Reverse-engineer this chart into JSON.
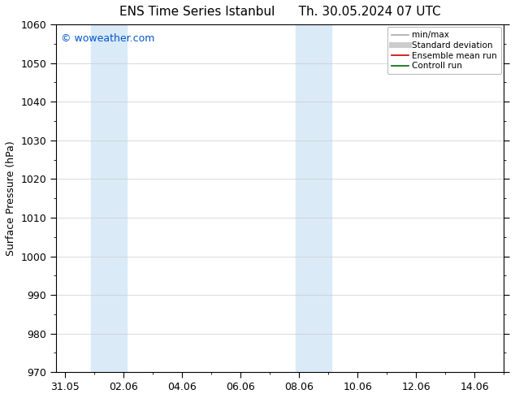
{
  "title_left": "ENS Time Series Istanbul",
  "title_right": "Th. 30.05.2024 07 UTC",
  "ylabel": "Surface Pressure (hPa)",
  "watermark": "© woweather.com",
  "ylim": [
    970,
    1060
  ],
  "yticks": [
    970,
    980,
    990,
    1000,
    1010,
    1020,
    1030,
    1040,
    1050,
    1060
  ],
  "x_tick_labels": [
    "31.05",
    "02.06",
    "04.06",
    "06.06",
    "08.06",
    "10.06",
    "12.06",
    "14.06"
  ],
  "x_tick_positions": [
    0,
    2,
    4,
    6,
    8,
    10,
    12,
    14
  ],
  "xlim": [
    -0.3,
    15.0
  ],
  "shaded_bands": [
    {
      "x_start": 0.9,
      "x_end": 2.1,
      "color": "#daeaf7"
    },
    {
      "x_start": 7.9,
      "x_end": 9.1,
      "color": "#daeaf7"
    }
  ],
  "legend_entries": [
    {
      "label": "min/max",
      "color": "#aaaaaa",
      "lw": 1.2
    },
    {
      "label": "Standard deviation",
      "color": "#cccccc",
      "lw": 5
    },
    {
      "label": "Ensemble mean run",
      "color": "#cc0000",
      "lw": 1.2
    },
    {
      "label": "Controll run",
      "color": "#006600",
      "lw": 1.2
    }
  ],
  "bg_color": "#ffffff",
  "plot_bg_color": "#ffffff",
  "grid_color": "#cccccc",
  "title_fontsize": 11,
  "watermark_color": "#0055cc",
  "watermark_fontsize": 9,
  "axis_label_fontsize": 9,
  "tick_label_fontsize": 9
}
